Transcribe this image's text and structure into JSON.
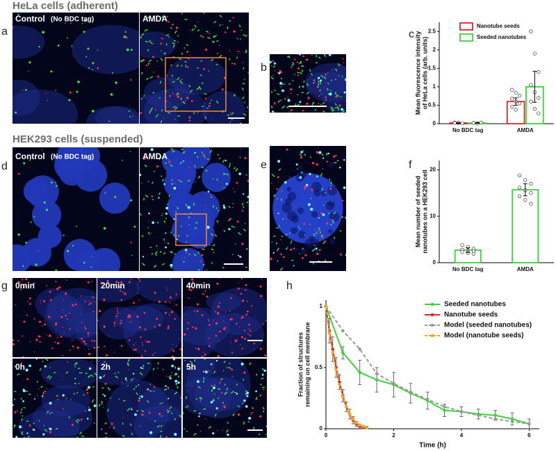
{
  "figure": {
    "headings": [
      "HeLa cells (adherent)",
      "HEK293 cells (suspended)"
    ],
    "panel_letters": [
      "a",
      "b",
      "c",
      "d",
      "e",
      "f",
      "g",
      "h"
    ],
    "image_labels": {
      "a": [
        "Control",
        "(No BDC tag)",
        "AMDA"
      ],
      "d": [
        "Control",
        "(No BDC tag)",
        "AMDA"
      ],
      "g": [
        "0min",
        "20min",
        "40min",
        "0h",
        "2h",
        "5h"
      ]
    }
  },
  "chart_data": [
    {
      "type": "bar",
      "ylabel": [
        "Mean fluorescence intensity",
        "of HeLa cells (arb. units)"
      ],
      "categories": [
        "No BDC tag",
        "AMDA"
      ],
      "ylim": [
        0,
        2.75
      ],
      "yticks": [
        0,
        0.5,
        1,
        1.5,
        2,
        2.5
      ],
      "legend": "top",
      "series": [
        {
          "name": "Nanotube seeds",
          "color": "#d8282b",
          "values": [
            0.02,
            0.6
          ],
          "errors": [
            0.01,
            0.1
          ],
          "points": [
            [
              0.03,
              0.02,
              0.01,
              0.02,
              0.03
            ],
            [
              0.92,
              0.84,
              0.76,
              0.68,
              0.6,
              0.55,
              0.46,
              0.38
            ]
          ]
        },
        {
          "name": "Seeded nanotubes",
          "color": "#3ad43a",
          "values": [
            0.02,
            1.0
          ],
          "errors": [
            0.01,
            0.42
          ],
          "points": [
            [
              0.02,
              0.01,
              0.03,
              0.02,
              0.01
            ],
            [
              2.5,
              1.9,
              1.4,
              1.05,
              0.85,
              0.7,
              0.6,
              0.4,
              0.28
            ]
          ]
        }
      ]
    },
    {
      "type": "bar",
      "ylabel": [
        "Mean number of seeded",
        "nanotubes on a HEK293 cell"
      ],
      "categories": [
        "No BDC tag",
        "AMDA"
      ],
      "ylim": [
        0,
        22
      ],
      "yticks": [
        0,
        10,
        20
      ],
      "color": "#3ad43a",
      "values": [
        2.7,
        15.7
      ],
      "errors": [
        0.5,
        1.3
      ],
      "points": [
        [
          3.8,
          3.4,
          3.0,
          2.8,
          2.6,
          2.5,
          2.3,
          2.1,
          1.9
        ],
        [
          18.8,
          17.8,
          17.0,
          16.2,
          15.6,
          15.0,
          14.3,
          13.5,
          12.7
        ]
      ]
    },
    {
      "type": "line",
      "xlabel": "Time (h)",
      "ylabel": [
        "Fraction of structures",
        "remaining on cell membrane"
      ],
      "xlim": [
        0,
        6.3
      ],
      "ylim": [
        0,
        1.05
      ],
      "xticks": [
        0,
        2,
        4,
        6
      ],
      "yticks": [
        0,
        0.5,
        1
      ],
      "legend": "upper right",
      "series": [
        {
          "name": "Seeded nanotubes",
          "color": "#3ad43a",
          "dashed": false,
          "x": [
            0,
            0.5,
            1,
            1.5,
            2,
            2.5,
            3,
            3.5,
            4,
            4.5,
            5,
            5.5,
            6
          ],
          "values": [
            1,
            0.62,
            0.46,
            0.4,
            0.36,
            0.29,
            0.23,
            0.15,
            0.14,
            0.12,
            0.11,
            0.08,
            0.04
          ],
          "errors": [
            0,
            0.05,
            0.1,
            0.1,
            0.1,
            0.08,
            0.07,
            0.05,
            0.04,
            0.04,
            0.04,
            0.05,
            0.04
          ]
        },
        {
          "name": "Nanotube seeds",
          "color": "#d8282b",
          "dashed": false,
          "x": [
            0,
            0.1,
            0.2,
            0.3,
            0.4,
            0.5,
            0.6,
            0.7,
            0.8,
            0.9,
            1,
            1.1,
            1.2
          ],
          "values": [
            1,
            0.8,
            0.65,
            0.5,
            0.38,
            0.27,
            0.18,
            0.12,
            0.07,
            0.04,
            0.02,
            0.01,
            0.01
          ],
          "errors": [
            0,
            0.1,
            0.1,
            0.08,
            0.06,
            0.05,
            0.04,
            0.04,
            0.03,
            0.02,
            0.01,
            0.01,
            0.01
          ]
        },
        {
          "name": "Model (seeded nanotubes)",
          "color": "#9a9a9a",
          "dashed": true,
          "x": [
            0,
            0.5,
            1,
            1.5,
            2,
            2.5,
            3,
            3.5,
            4,
            4.5,
            5,
            5.5,
            6
          ],
          "values": [
            1,
            0.8,
            0.65,
            0.45,
            0.37,
            0.3,
            0.24,
            0.18,
            0.14,
            0.11,
            0.08,
            0.06,
            0.04
          ]
        },
        {
          "name": "Model (nanotube seeds)",
          "color": "#f4a623",
          "dashed": true,
          "x": [
            0,
            0.1,
            0.2,
            0.3,
            0.4,
            0.5,
            0.6,
            0.7,
            0.8,
            0.9,
            1,
            1.1,
            1.2
          ],
          "values": [
            1,
            0.78,
            0.62,
            0.48,
            0.36,
            0.26,
            0.18,
            0.12,
            0.08,
            0.05,
            0.03,
            0.02,
            0.01
          ]
        }
      ]
    }
  ]
}
